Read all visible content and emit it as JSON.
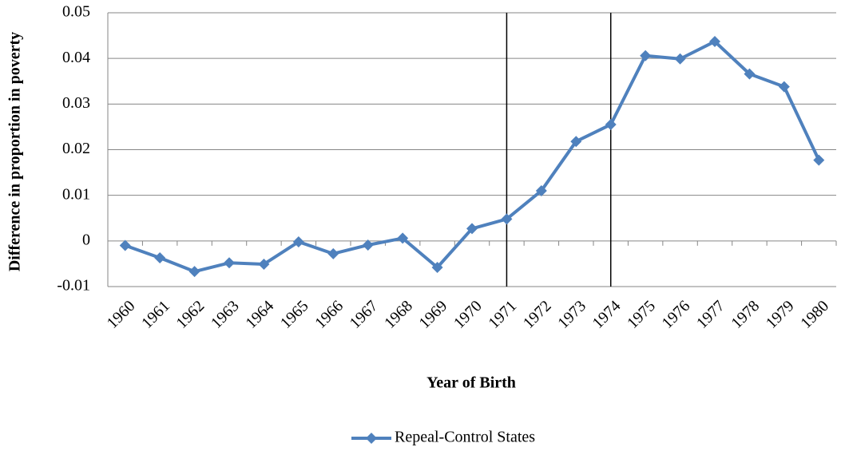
{
  "chart_data": {
    "type": "line",
    "y_label": "Difference in proportion in poverty",
    "x_label": "Year of Birth",
    "categories": [
      "1960",
      "1961",
      "1962",
      "1963",
      "1964",
      "1965",
      "1966",
      "1967",
      "1968",
      "1969",
      "1970",
      "1971",
      "1972",
      "1973",
      "1974",
      "1975",
      "1976",
      "1977",
      "1978",
      "1979",
      "1980"
    ],
    "series": [
      {
        "name": "Repeal-Control States",
        "color": "#4f81bd",
        "values": [
          -0.001,
          -0.0037,
          -0.0067,
          -0.0048,
          -0.0051,
          -0.0002,
          -0.0028,
          -0.0009,
          0.0006,
          -0.0058,
          0.0027,
          0.0048,
          0.011,
          0.0218,
          0.0255,
          0.0406,
          0.0399,
          0.0437,
          0.0366,
          0.0338,
          0.0177
        ]
      }
    ],
    "reference_lines": [
      "1971",
      "1974"
    ],
    "ylim": [
      -0.01,
      0.05
    ],
    "yticks": [
      -0.01,
      0,
      0.01,
      0.02,
      0.03,
      0.04,
      0.05
    ],
    "grid": true,
    "legend": "bottom"
  }
}
